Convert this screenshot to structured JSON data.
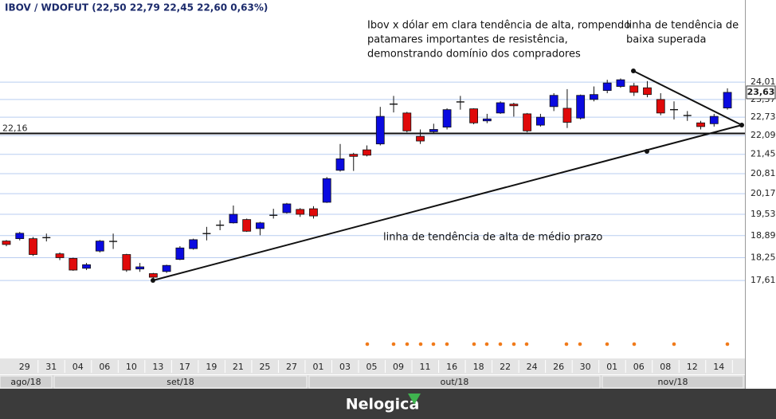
{
  "chart_data": {
    "type": "candlestick",
    "title": "IBOV / WDOFUT (22,50  22,79  22,45  22,60  0,63%)",
    "log_scale": true,
    "grid": true,
    "up_color": "#0a0ae0",
    "down_color": "#e00a0a",
    "ylim": [
      15.59,
      27.3
    ],
    "yticks": [
      {
        "value": 24.01,
        "label": "24,01"
      },
      {
        "value": 23.37,
        "label": "23,37"
      },
      {
        "value": 22.73,
        "label": "22,73"
      },
      {
        "value": 22.09,
        "label": "22,09"
      },
      {
        "value": 21.45,
        "label": "21,45"
      },
      {
        "value": 20.81,
        "label": "20,81"
      },
      {
        "value": 20.17,
        "label": "20,17"
      },
      {
        "value": 19.53,
        "label": "19,53"
      },
      {
        "value": 18.89,
        "label": "18,89"
      },
      {
        "value": 18.25,
        "label": "18,25"
      },
      {
        "value": 17.61,
        "label": "17,61"
      }
    ],
    "categories": [
      null,
      "29",
      null,
      "31",
      null,
      "04",
      null,
      "06",
      null,
      "10",
      null,
      "13",
      null,
      "17",
      null,
      "19",
      null,
      "21",
      null,
      "25",
      null,
      "27",
      null,
      "01",
      null,
      "03",
      null,
      "05",
      null,
      "09",
      null,
      "11",
      null,
      "16",
      null,
      "18",
      null,
      "22",
      null,
      "24",
      null,
      "26",
      null,
      "30",
      null,
      "01",
      null,
      "06",
      null,
      "08",
      null,
      "12",
      null,
      "14",
      null
    ],
    "months": [
      "ago/18",
      "set/18",
      "out/18",
      "nov/18"
    ],
    "open": [
      18.73,
      18.8,
      18.8,
      18.83,
      18.36,
      18.23,
      17.95,
      18.44,
      18.72,
      18.34,
      17.93,
      17.8,
      17.86,
      18.2,
      18.51,
      18.95,
      19.2,
      19.27,
      19.37,
      19.1,
      19.5,
      19.58,
      19.68,
      19.7,
      19.9,
      20.92,
      21.45,
      21.6,
      21.8,
      23.2,
      22.88,
      22.06,
      22.22,
      22.38,
      23.28,
      23.03,
      22.6,
      22.88,
      23.2,
      22.85,
      22.45,
      23.11,
      23.05,
      22.7,
      23.37,
      23.7,
      23.85,
      23.87,
      23.8,
      23.37,
      23.0,
      22.79,
      22.53,
      22.5,
      23.06
    ],
    "high": [
      18.76,
      19.0,
      18.85,
      18.95,
      18.4,
      18.25,
      18.1,
      18.76,
      18.95,
      18.36,
      18.1,
      17.82,
      18.05,
      18.58,
      18.8,
      19.15,
      19.35,
      19.8,
      19.4,
      19.3,
      19.7,
      19.88,
      19.72,
      19.78,
      20.7,
      21.8,
      21.5,
      21.75,
      23.1,
      23.5,
      22.92,
      22.3,
      22.5,
      23.05,
      23.5,
      23.05,
      22.85,
      23.3,
      23.25,
      22.88,
      22.85,
      23.6,
      23.75,
      23.55,
      23.85,
      24.1,
      24.15,
      23.98,
      24.05,
      23.6,
      23.3,
      22.95,
      22.6,
      22.85,
      23.78
    ],
    "low": [
      18.58,
      18.75,
      18.3,
      18.72,
      18.18,
      17.88,
      17.9,
      18.4,
      18.5,
      17.85,
      17.85,
      17.61,
      17.82,
      18.18,
      18.48,
      18.75,
      19.05,
      19.25,
      19.0,
      18.9,
      19.4,
      19.55,
      19.45,
      19.4,
      19.88,
      20.88,
      20.9,
      21.38,
      21.75,
      22.9,
      22.2,
      21.8,
      22.18,
      22.3,
      23.0,
      22.48,
      22.52,
      22.85,
      22.75,
      22.2,
      22.4,
      22.95,
      22.35,
      22.65,
      23.3,
      23.6,
      23.8,
      23.5,
      23.45,
      22.8,
      22.65,
      22.6,
      22.3,
      22.4,
      23.0
    ],
    "close": [
      18.63,
      18.96,
      18.34,
      18.83,
      18.25,
      17.9,
      18.05,
      18.73,
      18.72,
      17.9,
      17.99,
      17.7,
      18.03,
      18.53,
      18.77,
      18.95,
      19.2,
      19.53,
      19.02,
      19.27,
      19.5,
      19.85,
      19.53,
      19.48,
      20.65,
      21.3,
      21.38,
      21.42,
      22.76,
      23.2,
      22.25,
      21.9,
      22.3,
      23.0,
      23.28,
      22.53,
      22.67,
      23.25,
      23.14,
      22.25,
      22.73,
      23.52,
      22.55,
      23.52,
      23.55,
      23.98,
      24.1,
      23.63,
      23.55,
      22.88,
      23.0,
      22.79,
      22.4,
      22.76,
      23.63
    ],
    "hline": {
      "value": 22.16,
      "label": "22,16"
    },
    "last_price": {
      "value": 23.63,
      "label": "23,63"
    },
    "annotations": [
      {
        "lines": [
          "Ibov x dólar em clara tendência de alta, rompendo",
          "patamares importantes de resistência,",
          "demonstrando domínio dos compradores"
        ]
      },
      {
        "lines": [
          "linha de tendência de",
          "baixa superada"
        ]
      },
      {
        "lines": [
          "linha de tendência de alta de médio prazo"
        ]
      }
    ],
    "brand": "Nelogica"
  }
}
